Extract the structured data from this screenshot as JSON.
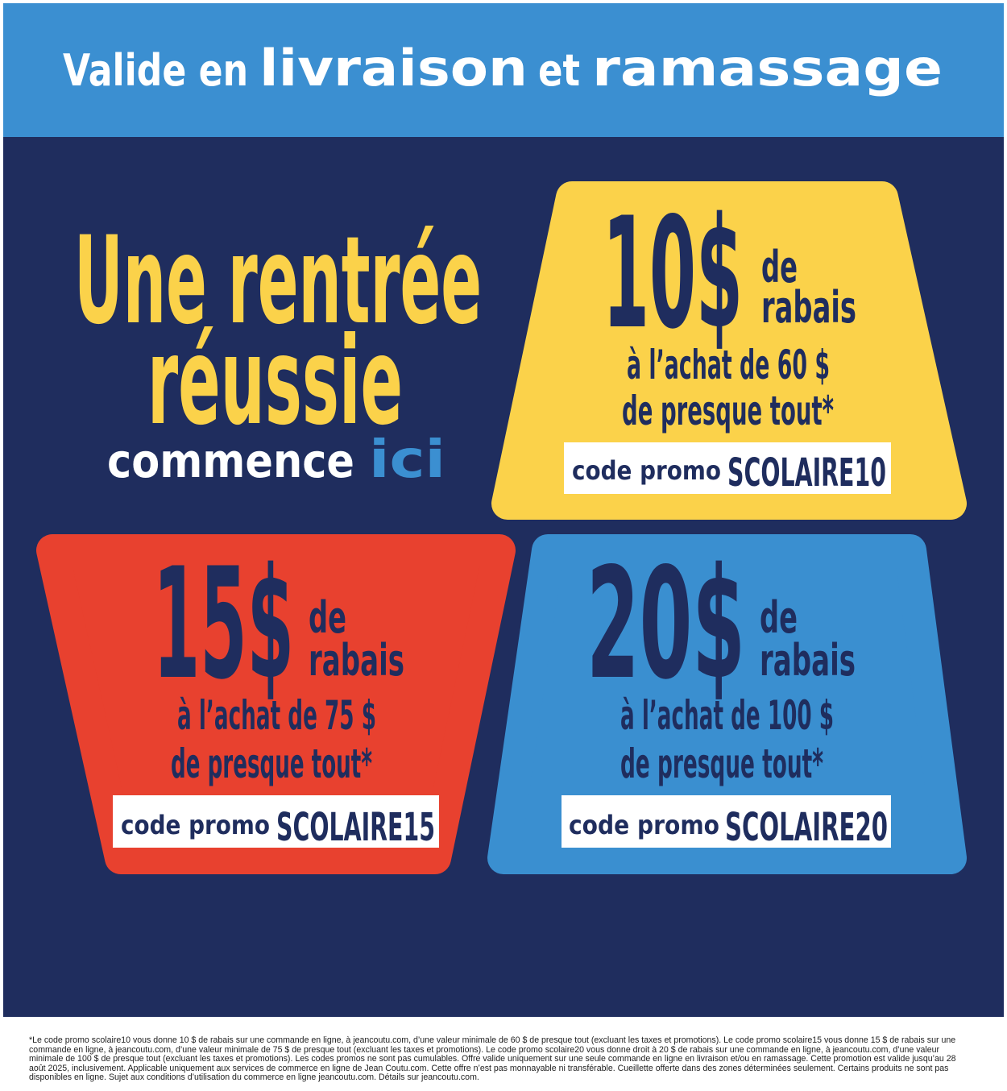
{
  "banner": {
    "prefix": "Valide en",
    "word1": "livraison",
    "middle": "et",
    "word2": "ramassage"
  },
  "headline": {
    "line1": "Une rentrée",
    "line2": "réussie",
    "line3_regular": "commence",
    "line3_accent": "ici"
  },
  "offers": [
    {
      "amount": "10$",
      "unit_line1": "de",
      "unit_line2": "rabais",
      "condition_line1": "à l’achat de 60 $",
      "condition_line2": "de presque tout*",
      "code_label": "code promo",
      "code": "SCOLAIRE10"
    },
    {
      "amount": "15$",
      "unit_line1": "de",
      "unit_line2": "rabais",
      "condition_line1": "à l’achat de 75 $",
      "condition_line2": "de presque tout*",
      "code_label": "code promo",
      "code": "SCOLAIRE15"
    },
    {
      "amount": "20$",
      "unit_line1": "de",
      "unit_line2": "rabais",
      "condition_line1": "à l’achat de 100 $",
      "condition_line2": "de presque tout*",
      "code_label": "code promo",
      "code": "SCOLAIRE20"
    }
  ],
  "footnote": "*Le code promo scolaire10 vous donne 10 $ de rabais sur une commande en ligne, à jeancoutu.com, d’une valeur minimale de 60 $ de presque tout (excluant les taxes et promotions). Le code promo scolaire15 vous donne 15 $ de rabais sur une commande en ligne, à jeancoutu.com, d’une valeur minimale de 75 $ de presque tout (excluant les taxes et promotions). Le code promo scolaire20 vous donne droit à 20 $ de rabais sur une commande en ligne, à jeancoutu.com, d’une valeur minimale de 100 $ de presque tout (excluant les taxes et promotions). Les codes promos ne sont pas cumulables. Offre valide uniquement sur une seule commande en ligne en livraison et/ou en ramassage. Cette promotion est valide jusqu’au 28 août 2025, inclusivement. Applicable uniquement aux services de commerce en ligne de Jean Coutu.com. Cette offre n’est pas monnayable ni transférable. Cueillette offerte dans des zones déterminées seulement. Certains produits ne sont pas disponibles en ligne. Sujet aux conditions d’utilisation du commerce en ligne jeancoutu.com. Détails sur jeancoutu.com."
}
